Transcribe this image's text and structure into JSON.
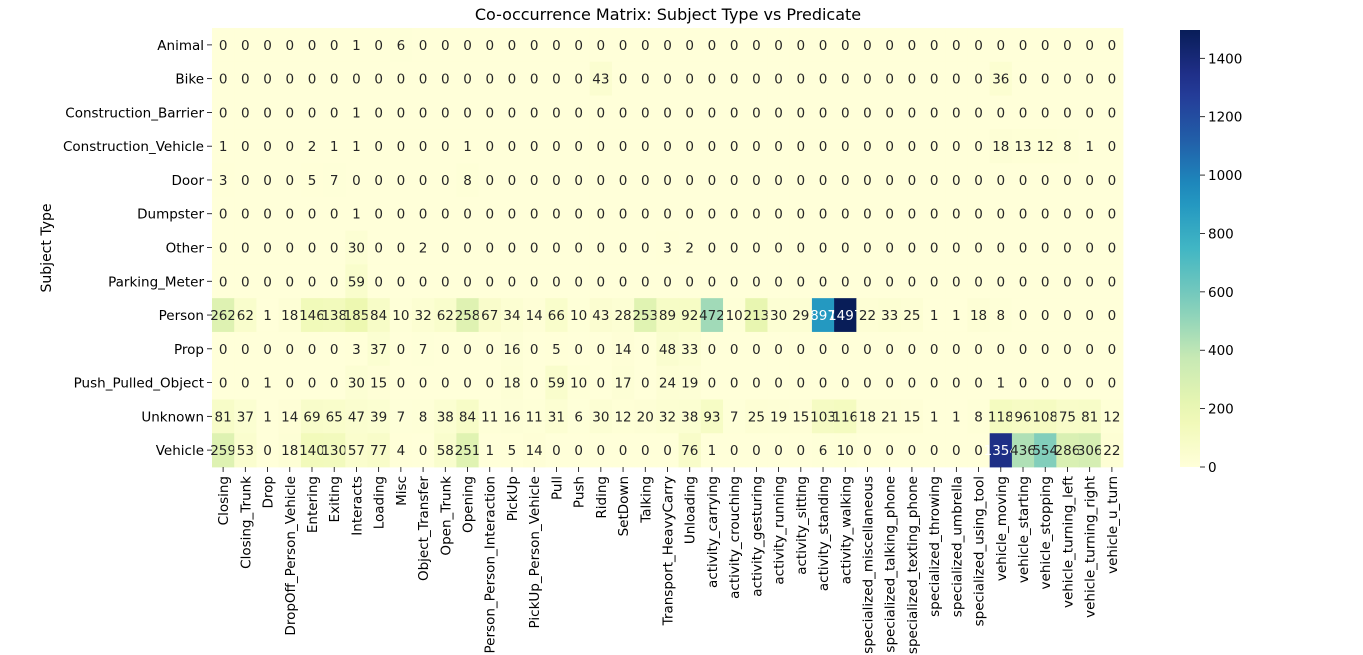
{
  "chart_data": {
    "type": "heatmap",
    "title": "Co-occurrence Matrix: Subject Type vs Predicate",
    "xlabel": "",
    "ylabel": "Subject Type",
    "colormap": "YlGnBu",
    "vmin": 0,
    "vmax": 1497,
    "colorbar_ticks": [
      0,
      200,
      400,
      600,
      800,
      1000,
      1200,
      1400
    ],
    "rows": [
      "Animal",
      "Bike",
      "Construction_Barrier",
      "Construction_Vehicle",
      "Door",
      "Dumpster",
      "Other",
      "Parking_Meter",
      "Person",
      "Prop",
      "Push_Pulled_Object",
      "Unknown",
      "Vehicle"
    ],
    "columns": [
      "Closing",
      "Closing_Trunk",
      "Drop",
      "DropOff_Person_Vehicle",
      "Entering",
      "Exiting",
      "Interacts",
      "Loading",
      "Misc",
      "Object_Transfer",
      "Open_Trunk",
      "Opening",
      "Person_Person_Interaction",
      "PickUp",
      "PickUp_Person_Vehicle",
      "Pull",
      "Push",
      "Riding",
      "SetDown",
      "Talking",
      "Transport_HeavyCarry",
      "Unloading",
      "activity_carrying",
      "activity_crouching",
      "activity_gesturing",
      "activity_running",
      "activity_sitting",
      "activity_standing",
      "activity_walking",
      "specialized_miscellaneous",
      "specialized_talking_phone",
      "specialized_texting_phone",
      "specialized_throwing",
      "specialized_umbrella",
      "specialized_using_tool",
      "vehicle_moving",
      "vehicle_starting",
      "vehicle_stopping",
      "vehicle_turning_left",
      "vehicle_turning_right",
      "vehicle_u_turn"
    ],
    "values": [
      [
        0,
        0,
        0,
        0,
        0,
        0,
        1,
        0,
        6,
        0,
        0,
        0,
        0,
        0,
        0,
        0,
        0,
        0,
        0,
        0,
        0,
        0,
        0,
        0,
        0,
        0,
        0,
        0,
        0,
        0,
        0,
        0,
        0,
        0,
        0,
        0,
        0,
        0,
        0,
        0,
        0
      ],
      [
        0,
        0,
        0,
        0,
        0,
        0,
        0,
        0,
        0,
        0,
        0,
        0,
        0,
        0,
        0,
        0,
        0,
        43,
        0,
        0,
        0,
        0,
        0,
        0,
        0,
        0,
        0,
        0,
        0,
        0,
        0,
        0,
        0,
        0,
        0,
        36,
        0,
        0,
        0,
        0,
        0
      ],
      [
        0,
        0,
        0,
        0,
        0,
        0,
        1,
        0,
        0,
        0,
        0,
        0,
        0,
        0,
        0,
        0,
        0,
        0,
        0,
        0,
        0,
        0,
        0,
        0,
        0,
        0,
        0,
        0,
        0,
        0,
        0,
        0,
        0,
        0,
        0,
        0,
        0,
        0,
        0,
        0,
        0
      ],
      [
        1,
        0,
        0,
        0,
        2,
        1,
        1,
        0,
        0,
        0,
        0,
        1,
        0,
        0,
        0,
        0,
        0,
        0,
        0,
        0,
        0,
        0,
        0,
        0,
        0,
        0,
        0,
        0,
        0,
        0,
        0,
        0,
        0,
        0,
        0,
        18,
        13,
        12,
        8,
        1,
        0
      ],
      [
        3,
        0,
        0,
        0,
        5,
        7,
        0,
        0,
        0,
        0,
        0,
        8,
        0,
        0,
        0,
        0,
        0,
        0,
        0,
        0,
        0,
        0,
        0,
        0,
        0,
        0,
        0,
        0,
        0,
        0,
        0,
        0,
        0,
        0,
        0,
        0,
        0,
        0,
        0,
        0,
        0
      ],
      [
        0,
        0,
        0,
        0,
        0,
        0,
        1,
        0,
        0,
        0,
        0,
        0,
        0,
        0,
        0,
        0,
        0,
        0,
        0,
        0,
        0,
        0,
        0,
        0,
        0,
        0,
        0,
        0,
        0,
        0,
        0,
        0,
        0,
        0,
        0,
        0,
        0,
        0,
        0,
        0,
        0
      ],
      [
        0,
        0,
        0,
        0,
        0,
        0,
        30,
        0,
        0,
        2,
        0,
        0,
        0,
        0,
        0,
        0,
        0,
        0,
        0,
        0,
        3,
        2,
        0,
        0,
        0,
        0,
        0,
        0,
        0,
        0,
        0,
        0,
        0,
        0,
        0,
        0,
        0,
        0,
        0,
        0,
        0
      ],
      [
        0,
        0,
        0,
        0,
        0,
        0,
        59,
        0,
        0,
        0,
        0,
        0,
        0,
        0,
        0,
        0,
        0,
        0,
        0,
        0,
        0,
        0,
        0,
        0,
        0,
        0,
        0,
        0,
        0,
        0,
        0,
        0,
        0,
        0,
        0,
        0,
        0,
        0,
        0,
        0,
        0
      ],
      [
        262,
        62,
        1,
        18,
        146,
        138,
        185,
        84,
        10,
        32,
        62,
        258,
        67,
        34,
        14,
        66,
        10,
        43,
        28,
        253,
        89,
        92,
        472,
        10,
        213,
        30,
        29,
        897,
        1497,
        22,
        33,
        25,
        1,
        1,
        18,
        8,
        0,
        0,
        0,
        0,
        0
      ],
      [
        0,
        0,
        0,
        0,
        0,
        0,
        3,
        37,
        0,
        7,
        0,
        0,
        0,
        16,
        0,
        5,
        0,
        0,
        14,
        0,
        48,
        33,
        0,
        0,
        0,
        0,
        0,
        0,
        0,
        0,
        0,
        0,
        0,
        0,
        0,
        0,
        0,
        0,
        0,
        0,
        0
      ],
      [
        0,
        0,
        1,
        0,
        0,
        0,
        30,
        15,
        0,
        0,
        0,
        0,
        0,
        18,
        0,
        59,
        10,
        0,
        17,
        0,
        24,
        19,
        0,
        0,
        0,
        0,
        0,
        0,
        0,
        0,
        0,
        0,
        0,
        0,
        0,
        1,
        0,
        0,
        0,
        0,
        0
      ],
      [
        81,
        37,
        1,
        14,
        69,
        65,
        47,
        39,
        7,
        8,
        38,
        84,
        11,
        16,
        11,
        31,
        6,
        30,
        12,
        20,
        32,
        38,
        93,
        7,
        25,
        19,
        15,
        103,
        116,
        18,
        21,
        15,
        1,
        1,
        8,
        118,
        96,
        108,
        75,
        81,
        12
      ],
      [
        259,
        53,
        0,
        18,
        140,
        130,
        57,
        77,
        4,
        0,
        58,
        251,
        1,
        5,
        14,
        0,
        0,
        0,
        0,
        0,
        0,
        76,
        1,
        0,
        0,
        0,
        0,
        6,
        10,
        0,
        0,
        0,
        0,
        0,
        0,
        1354,
        436,
        554,
        286,
        306,
        22
      ]
    ]
  }
}
